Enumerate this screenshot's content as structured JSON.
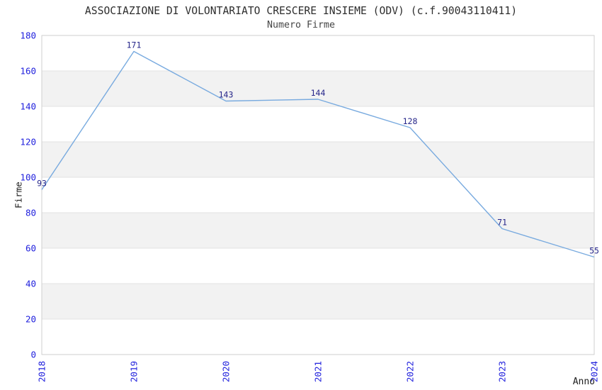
{
  "chart_data": {
    "type": "line",
    "title": "ASSOCIAZIONE DI VOLONTARIATO CRESCERE INSIEME (ODV) (c.f.90043110411)",
    "subtitle": "Numero Firme",
    "xlabel": "Anno",
    "ylabel": "Firme",
    "x": [
      "2018",
      "2019",
      "2020",
      "2021",
      "2022",
      "2023",
      "2024"
    ],
    "series": [
      {
        "name": "Numero Firme",
        "values": [
          93,
          171,
          143,
          144,
          128,
          71,
          55
        ]
      }
    ],
    "ylim": [
      0,
      180
    ],
    "ytick_step": 20,
    "yticks": [
      0,
      20,
      40,
      60,
      80,
      100,
      120,
      140,
      160,
      180
    ],
    "grid": "horizontal-bands",
    "legend_position": "none",
    "show_point_labels": true,
    "point_labels": [
      "93",
      "171",
      "143",
      "144",
      "128",
      "71",
      "55"
    ],
    "x_tick_rotation_deg": -90,
    "style": {
      "line_color": "#78aadf",
      "tick_label_color": "#2121dd",
      "point_label_color": "#26268a",
      "band_color": "#f2f2f2",
      "gridline_color": "#e3e3e3",
      "frame_color": "#cfcfcf",
      "title_color": "#2e2e2e",
      "subtitle_color": "#454545",
      "axis_label_color": "#1c1c1c",
      "plot_background": "#ffffff"
    }
  }
}
